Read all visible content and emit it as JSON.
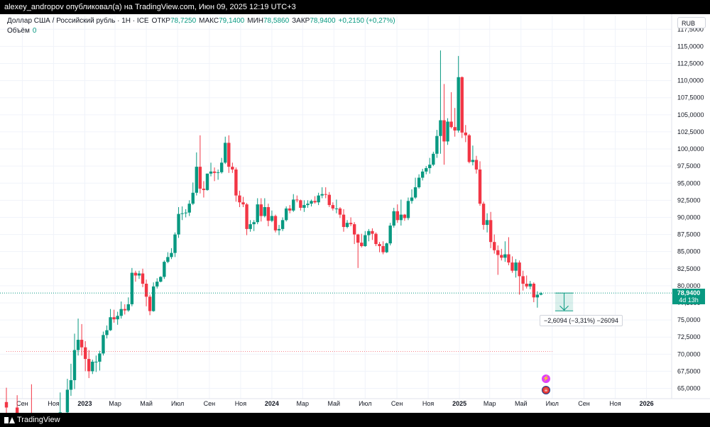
{
  "header": {
    "publisher_text": "alexey_andropov опубликовал(а) на TradingView.com, Июн 09, 2025 12:19 UTC+3"
  },
  "legend": {
    "symbol": "Доллар США / Российский рубль · 1Н · ICE",
    "open_label": "ОТКР",
    "open_value": "78,7250",
    "high_label": "МАКС",
    "high_value": "79,1400",
    "low_label": "МИН",
    "low_value": "78,5860",
    "close_label": "ЗАКР",
    "close_value": "78,9400",
    "change": "+0,2150 (+0,27%)",
    "volume_label": "Объём",
    "volume_value": "0"
  },
  "currency_button": "RUB",
  "last_price": {
    "value": "78,9400",
    "countdown": "4d 13h"
  },
  "measure_tool": {
    "label": "−2,6094 (−3,31%) −26094"
  },
  "footer": {
    "brand": "TradingView"
  },
  "events": {
    "flash_icon": "flash-icon",
    "flag_icon": "us-flag-icon"
  },
  "colors": {
    "up": "#089981",
    "down": "#f23645",
    "grid": "#f0f3fa",
    "text": "#131722",
    "price_line": "#089981"
  },
  "chart_data": {
    "type": "candlestick",
    "ylim": [
      63.5,
      119.5
    ],
    "y_ticks": [
      "117,5000",
      "115,0000",
      "112,5000",
      "110,0000",
      "107,5000",
      "105,0000",
      "102,5000",
      "100,0000",
      "97,5000",
      "95,0000",
      "92,5000",
      "90,0000",
      "87,5000",
      "85,0000",
      "82,5000",
      "80,0000",
      "77,5000",
      "75,0000",
      "72,5000",
      "70,0000",
      "67,5000",
      "65,0000"
    ],
    "x_ticks": [
      "Сен",
      "Ноя",
      "2023",
      "Мар",
      "Май",
      "Июл",
      "Сен",
      "Ноя",
      "2024",
      "Мар",
      "Май",
      "Июл",
      "Сен",
      "Ноя",
      "2025",
      "Мар",
      "Май",
      "Июл",
      "Сен",
      "Ноя",
      "2026"
    ],
    "x_range": [
      "2022-08-01",
      "2026-02-01"
    ],
    "last_close": 78.94,
    "reference_level": 70.4,
    "measure": {
      "from": 78.94,
      "to": 76.33,
      "from_date": "2025-06-09",
      "to_date": "2025-07-14"
    },
    "candles": [
      {
        "d": "2022-08-01",
        "o": 63.0,
        "h": 65.1,
        "l": 61.0,
        "c": 62.2
      },
      {
        "d": "2022-08-22",
        "o": 62.2,
        "h": 64.0,
        "l": 60.5,
        "c": 61.1
      },
      {
        "d": "2022-09-19",
        "o": 61.1,
        "h": 65.6,
        "l": 58.5,
        "c": 60.0
      },
      {
        "d": "2022-11-14",
        "o": 60.4,
        "h": 64.4,
        "l": 60.0,
        "c": 61.5
      },
      {
        "d": "2022-11-28",
        "o": 61.5,
        "h": 66.4,
        "l": 60.8,
        "c": 64.8
      },
      {
        "d": "2022-12-05",
        "o": 64.8,
        "h": 68.6,
        "l": 63.9,
        "c": 66.2
      },
      {
        "d": "2022-12-12",
        "o": 66.2,
        "h": 73.0,
        "l": 64.9,
        "c": 70.6
      },
      {
        "d": "2022-12-19",
        "o": 70.6,
        "h": 75.2,
        "l": 69.8,
        "c": 72.1
      },
      {
        "d": "2022-12-26",
        "o": 72.1,
        "h": 74.4,
        "l": 69.8,
        "c": 71.0
      },
      {
        "d": "2023-01-02",
        "o": 71.0,
        "h": 71.9,
        "l": 67.5,
        "c": 69.3
      },
      {
        "d": "2023-01-09",
        "o": 69.3,
        "h": 70.6,
        "l": 66.5,
        "c": 67.5
      },
      {
        "d": "2023-01-16",
        "o": 67.5,
        "h": 69.2,
        "l": 67.1,
        "c": 68.9
      },
      {
        "d": "2023-01-23",
        "o": 68.9,
        "h": 69.8,
        "l": 67.4,
        "c": 68.9
      },
      {
        "d": "2023-01-30",
        "o": 68.9,
        "h": 70.5,
        "l": 67.6,
        "c": 70.1
      },
      {
        "d": "2023-02-06",
        "o": 70.1,
        "h": 73.3,
        "l": 69.8,
        "c": 72.8
      },
      {
        "d": "2023-02-13",
        "o": 72.8,
        "h": 74.2,
        "l": 72.3,
        "c": 73.5
      },
      {
        "d": "2023-02-20",
        "o": 73.5,
        "h": 76.6,
        "l": 73.4,
        "c": 75.4
      },
      {
        "d": "2023-02-27",
        "o": 75.4,
        "h": 76.5,
        "l": 74.6,
        "c": 75.1
      },
      {
        "d": "2023-03-06",
        "o": 75.1,
        "h": 76.2,
        "l": 74.3,
        "c": 75.6
      },
      {
        "d": "2023-03-13",
        "o": 75.6,
        "h": 77.7,
        "l": 75.2,
        "c": 76.6
      },
      {
        "d": "2023-03-20",
        "o": 76.6,
        "h": 77.3,
        "l": 75.8,
        "c": 76.4
      },
      {
        "d": "2023-03-27",
        "o": 76.4,
        "h": 78.3,
        "l": 76.2,
        "c": 77.3
      },
      {
        "d": "2023-04-03",
        "o": 77.3,
        "h": 82.6,
        "l": 77.0,
        "c": 81.9
      },
      {
        "d": "2023-04-10",
        "o": 81.9,
        "h": 82.2,
        "l": 80.6,
        "c": 81.5
      },
      {
        "d": "2023-04-17",
        "o": 81.5,
        "h": 82.2,
        "l": 81.0,
        "c": 81.8
      },
      {
        "d": "2023-04-24",
        "o": 81.8,
        "h": 82.5,
        "l": 79.8,
        "c": 80.3
      },
      {
        "d": "2023-05-01",
        "o": 80.3,
        "h": 80.9,
        "l": 77.0,
        "c": 78.4
      },
      {
        "d": "2023-05-08",
        "o": 78.4,
        "h": 78.7,
        "l": 75.7,
        "c": 76.3
      },
      {
        "d": "2023-05-15",
        "o": 76.3,
        "h": 80.5,
        "l": 76.2,
        "c": 79.9
      },
      {
        "d": "2023-05-22",
        "o": 79.9,
        "h": 81.1,
        "l": 79.6,
        "c": 80.6
      },
      {
        "d": "2023-05-29",
        "o": 80.6,
        "h": 81.4,
        "l": 80.5,
        "c": 81.3
      },
      {
        "d": "2023-06-05",
        "o": 81.3,
        "h": 83.7,
        "l": 81.0,
        "c": 83.5
      },
      {
        "d": "2023-06-12",
        "o": 83.5,
        "h": 84.9,
        "l": 83.3,
        "c": 84.2
      },
      {
        "d": "2023-06-19",
        "o": 84.2,
        "h": 85.5,
        "l": 83.9,
        "c": 84.8
      },
      {
        "d": "2023-06-26",
        "o": 84.8,
        "h": 87.8,
        "l": 84.2,
        "c": 87.5
      },
      {
        "d": "2023-07-03",
        "o": 87.5,
        "h": 91.5,
        "l": 87.0,
        "c": 90.5
      },
      {
        "d": "2023-07-10",
        "o": 90.5,
        "h": 91.6,
        "l": 89.6,
        "c": 90.6
      },
      {
        "d": "2023-07-17",
        "o": 90.6,
        "h": 91.2,
        "l": 90.0,
        "c": 90.7
      },
      {
        "d": "2023-07-24",
        "o": 90.7,
        "h": 92.5,
        "l": 90.2,
        "c": 92.0
      },
      {
        "d": "2023-07-31",
        "o": 92.0,
        "h": 95.1,
        "l": 91.8,
        "c": 93.6
      },
      {
        "d": "2023-08-07",
        "o": 93.6,
        "h": 99.5,
        "l": 93.2,
        "c": 97.4
      },
      {
        "d": "2023-08-14",
        "o": 97.4,
        "h": 102.0,
        "l": 93.5,
        "c": 94.2
      },
      {
        "d": "2023-08-21",
        "o": 94.2,
        "h": 95.3,
        "l": 92.9,
        "c": 94.0
      },
      {
        "d": "2023-08-28",
        "o": 94.0,
        "h": 96.4,
        "l": 93.9,
        "c": 96.4
      },
      {
        "d": "2023-09-04",
        "o": 96.4,
        "h": 98.0,
        "l": 96.0,
        "c": 96.7
      },
      {
        "d": "2023-09-11",
        "o": 96.7,
        "h": 97.3,
        "l": 95.3,
        "c": 96.5
      },
      {
        "d": "2023-09-18",
        "o": 96.5,
        "h": 97.0,
        "l": 95.5,
        "c": 96.6
      },
      {
        "d": "2023-09-25",
        "o": 96.6,
        "h": 98.7,
        "l": 96.4,
        "c": 98.0
      },
      {
        "d": "2023-10-02",
        "o": 98.0,
        "h": 101.8,
        "l": 97.8,
        "c": 100.9
      },
      {
        "d": "2023-10-09",
        "o": 100.9,
        "h": 102.0,
        "l": 96.5,
        "c": 97.4
      },
      {
        "d": "2023-10-16",
        "o": 97.4,
        "h": 98.0,
        "l": 96.5,
        "c": 97.0
      },
      {
        "d": "2023-10-23",
        "o": 97.0,
        "h": 97.3,
        "l": 92.3,
        "c": 93.2
      },
      {
        "d": "2023-10-30",
        "o": 93.2,
        "h": 93.9,
        "l": 91.5,
        "c": 92.2
      },
      {
        "d": "2023-11-06",
        "o": 92.2,
        "h": 93.0,
        "l": 91.5,
        "c": 91.9
      },
      {
        "d": "2023-11-13",
        "o": 91.9,
        "h": 92.1,
        "l": 87.4,
        "c": 88.3
      },
      {
        "d": "2023-11-20",
        "o": 88.3,
        "h": 89.6,
        "l": 87.9,
        "c": 89.0
      },
      {
        "d": "2023-11-27",
        "o": 89.0,
        "h": 89.6,
        "l": 88.0,
        "c": 89.3
      },
      {
        "d": "2023-12-04",
        "o": 89.3,
        "h": 92.8,
        "l": 89.0,
        "c": 91.9
      },
      {
        "d": "2023-12-11",
        "o": 91.9,
        "h": 92.8,
        "l": 89.4,
        "c": 90.2
      },
      {
        "d": "2023-12-18",
        "o": 90.2,
        "h": 92.8,
        "l": 90.0,
        "c": 91.5
      },
      {
        "d": "2023-12-25",
        "o": 91.5,
        "h": 92.0,
        "l": 88.7,
        "c": 89.5
      },
      {
        "d": "2024-01-01",
        "o": 89.5,
        "h": 91.0,
        "l": 89.3,
        "c": 90.2
      },
      {
        "d": "2024-01-08",
        "o": 90.2,
        "h": 90.4,
        "l": 87.8,
        "c": 88.1
      },
      {
        "d": "2024-01-15",
        "o": 88.1,
        "h": 88.9,
        "l": 87.4,
        "c": 88.3
      },
      {
        "d": "2024-01-22",
        "o": 88.3,
        "h": 90.0,
        "l": 88.0,
        "c": 89.6
      },
      {
        "d": "2024-01-29",
        "o": 89.6,
        "h": 91.6,
        "l": 89.4,
        "c": 91.3
      },
      {
        "d": "2024-02-05",
        "o": 91.3,
        "h": 91.8,
        "l": 90.6,
        "c": 91.0
      },
      {
        "d": "2024-02-12",
        "o": 91.0,
        "h": 93.4,
        "l": 90.8,
        "c": 92.6
      },
      {
        "d": "2024-02-19",
        "o": 92.6,
        "h": 93.2,
        "l": 92.2,
        "c": 92.5
      },
      {
        "d": "2024-02-26",
        "o": 92.5,
        "h": 92.6,
        "l": 91.0,
        "c": 91.4
      },
      {
        "d": "2024-03-04",
        "o": 91.4,
        "h": 92.5,
        "l": 90.8,
        "c": 91.8
      },
      {
        "d": "2024-03-11",
        "o": 91.8,
        "h": 92.5,
        "l": 91.4,
        "c": 92.0
      },
      {
        "d": "2024-03-18",
        "o": 92.0,
        "h": 92.6,
        "l": 91.6,
        "c": 92.4
      },
      {
        "d": "2024-03-25",
        "o": 92.4,
        "h": 93.1,
        "l": 92.0,
        "c": 92.2
      },
      {
        "d": "2024-04-01",
        "o": 92.2,
        "h": 93.6,
        "l": 91.8,
        "c": 93.2
      },
      {
        "d": "2024-04-08",
        "o": 93.2,
        "h": 94.4,
        "l": 92.8,
        "c": 93.4
      },
      {
        "d": "2024-04-15",
        "o": 93.4,
        "h": 94.4,
        "l": 92.8,
        "c": 93.3
      },
      {
        "d": "2024-04-22",
        "o": 93.3,
        "h": 93.7,
        "l": 91.5,
        "c": 91.8
      },
      {
        "d": "2024-04-29",
        "o": 91.8,
        "h": 92.2,
        "l": 91.0,
        "c": 91.3
      },
      {
        "d": "2024-05-06",
        "o": 91.3,
        "h": 92.6,
        "l": 90.6,
        "c": 91.3
      },
      {
        "d": "2024-05-13",
        "o": 91.3,
        "h": 91.5,
        "l": 89.9,
        "c": 90.4
      },
      {
        "d": "2024-05-20",
        "o": 90.4,
        "h": 91.2,
        "l": 87.9,
        "c": 88.6
      },
      {
        "d": "2024-05-27",
        "o": 88.6,
        "h": 89.6,
        "l": 88.4,
        "c": 89.2
      },
      {
        "d": "2024-06-03",
        "o": 89.2,
        "h": 90.0,
        "l": 88.7,
        "c": 89.0
      },
      {
        "d": "2024-06-10",
        "o": 89.0,
        "h": 89.3,
        "l": 86.1,
        "c": 87.5
      },
      {
        "d": "2024-06-17",
        "o": 87.5,
        "h": 87.6,
        "l": 82.6,
        "c": 86.3
      },
      {
        "d": "2024-06-24",
        "o": 86.3,
        "h": 87.6,
        "l": 85.6,
        "c": 85.8
      },
      {
        "d": "2024-07-01",
        "o": 85.8,
        "h": 88.0,
        "l": 85.7,
        "c": 87.4
      },
      {
        "d": "2024-07-08",
        "o": 87.4,
        "h": 88.3,
        "l": 86.5,
        "c": 88.0
      },
      {
        "d": "2024-07-15",
        "o": 88.0,
        "h": 88.4,
        "l": 86.7,
        "c": 87.6
      },
      {
        "d": "2024-07-22",
        "o": 87.6,
        "h": 87.8,
        "l": 85.8,
        "c": 86.1
      },
      {
        "d": "2024-07-29",
        "o": 86.1,
        "h": 86.4,
        "l": 84.9,
        "c": 85.8
      },
      {
        "d": "2024-08-05",
        "o": 85.8,
        "h": 86.5,
        "l": 84.6,
        "c": 84.9
      },
      {
        "d": "2024-08-12",
        "o": 84.9,
        "h": 86.3,
        "l": 84.8,
        "c": 86.2
      },
      {
        "d": "2024-08-19",
        "o": 86.2,
        "h": 89.2,
        "l": 85.9,
        "c": 88.8
      },
      {
        "d": "2024-08-26",
        "o": 88.8,
        "h": 91.4,
        "l": 88.5,
        "c": 90.9
      },
      {
        "d": "2024-09-02",
        "o": 90.9,
        "h": 91.9,
        "l": 89.2,
        "c": 89.6
      },
      {
        "d": "2024-09-09",
        "o": 89.6,
        "h": 92.6,
        "l": 88.8,
        "c": 90.4
      },
      {
        "d": "2024-09-16",
        "o": 90.4,
        "h": 90.5,
        "l": 89.5,
        "c": 89.9
      },
      {
        "d": "2024-09-23",
        "o": 89.9,
        "h": 92.9,
        "l": 89.6,
        "c": 92.4
      },
      {
        "d": "2024-09-30",
        "o": 92.4,
        "h": 94.1,
        "l": 92.0,
        "c": 92.9
      },
      {
        "d": "2024-10-07",
        "o": 92.9,
        "h": 95.8,
        "l": 92.7,
        "c": 94.4
      },
      {
        "d": "2024-10-14",
        "o": 94.4,
        "h": 96.3,
        "l": 94.2,
        "c": 95.8
      },
      {
        "d": "2024-10-21",
        "o": 95.8,
        "h": 97.1,
        "l": 95.4,
        "c": 96.7
      },
      {
        "d": "2024-10-28",
        "o": 96.7,
        "h": 97.5,
        "l": 96.3,
        "c": 97.2
      },
      {
        "d": "2024-11-04",
        "o": 97.2,
        "h": 98.7,
        "l": 96.4,
        "c": 97.7
      },
      {
        "d": "2024-11-11",
        "o": 97.7,
        "h": 99.6,
        "l": 97.5,
        "c": 99.3
      },
      {
        "d": "2024-11-18",
        "o": 99.3,
        "h": 102.8,
        "l": 98.7,
        "c": 101.9
      },
      {
        "d": "2024-11-25",
        "o": 101.9,
        "h": 114.4,
        "l": 99.3,
        "c": 104.2
      },
      {
        "d": "2024-12-02",
        "o": 104.2,
        "h": 109.5,
        "l": 97.7,
        "c": 101.1
      },
      {
        "d": "2024-12-09",
        "o": 101.1,
        "h": 104.5,
        "l": 100.6,
        "c": 104.0
      },
      {
        "d": "2024-12-16",
        "o": 104.0,
        "h": 108.3,
        "l": 103.0,
        "c": 103.2
      },
      {
        "d": "2024-12-23",
        "o": 103.2,
        "h": 106.0,
        "l": 101.8,
        "c": 102.7
      },
      {
        "d": "2024-12-30",
        "o": 102.7,
        "h": 113.6,
        "l": 102.4,
        "c": 110.5
      },
      {
        "d": "2025-01-06",
        "o": 110.5,
        "h": 110.6,
        "l": 101.6,
        "c": 102.4
      },
      {
        "d": "2025-01-13",
        "o": 102.4,
        "h": 103.5,
        "l": 101.0,
        "c": 102.0
      },
      {
        "d": "2025-01-20",
        "o": 102.0,
        "h": 102.2,
        "l": 97.9,
        "c": 98.1
      },
      {
        "d": "2025-01-27",
        "o": 98.1,
        "h": 100.5,
        "l": 97.6,
        "c": 98.4
      },
      {
        "d": "2025-02-03",
        "o": 98.4,
        "h": 99.0,
        "l": 96.4,
        "c": 97.0
      },
      {
        "d": "2025-02-10",
        "o": 97.0,
        "h": 98.2,
        "l": 91.7,
        "c": 92.0
      },
      {
        "d": "2025-02-17",
        "o": 92.0,
        "h": 92.3,
        "l": 88.2,
        "c": 88.9
      },
      {
        "d": "2025-02-24",
        "o": 88.9,
        "h": 90.6,
        "l": 87.8,
        "c": 89.6
      },
      {
        "d": "2025-03-03",
        "o": 89.6,
        "h": 90.8,
        "l": 85.5,
        "c": 86.4
      },
      {
        "d": "2025-03-10",
        "o": 86.4,
        "h": 87.5,
        "l": 84.7,
        "c": 85.2
      },
      {
        "d": "2025-03-17",
        "o": 85.2,
        "h": 85.9,
        "l": 81.6,
        "c": 84.5
      },
      {
        "d": "2025-03-24",
        "o": 84.5,
        "h": 85.4,
        "l": 83.7,
        "c": 84.1
      },
      {
        "d": "2025-03-31",
        "o": 84.1,
        "h": 86.5,
        "l": 83.5,
        "c": 84.6
      },
      {
        "d": "2025-04-07",
        "o": 84.6,
        "h": 87.1,
        "l": 83.0,
        "c": 83.4
      },
      {
        "d": "2025-04-14",
        "o": 83.4,
        "h": 84.3,
        "l": 81.9,
        "c": 82.2
      },
      {
        "d": "2025-04-21",
        "o": 82.2,
        "h": 83.9,
        "l": 81.2,
        "c": 83.4
      },
      {
        "d": "2025-04-28",
        "o": 83.4,
        "h": 83.7,
        "l": 78.7,
        "c": 81.4
      },
      {
        "d": "2025-05-05",
        "o": 81.4,
        "h": 82.2,
        "l": 79.3,
        "c": 80.3
      },
      {
        "d": "2025-05-12",
        "o": 80.3,
        "h": 81.5,
        "l": 79.6,
        "c": 79.9
      },
      {
        "d": "2025-05-19",
        "o": 79.9,
        "h": 80.7,
        "l": 79.5,
        "c": 80.3
      },
      {
        "d": "2025-05-26",
        "o": 80.3,
        "h": 80.5,
        "l": 77.6,
        "c": 78.3
      },
      {
        "d": "2025-06-02",
        "o": 78.3,
        "h": 79.2,
        "l": 76.8,
        "c": 78.7
      },
      {
        "d": "2025-06-09",
        "o": 78.7,
        "h": 79.1,
        "l": 78.6,
        "c": 78.9
      }
    ]
  }
}
